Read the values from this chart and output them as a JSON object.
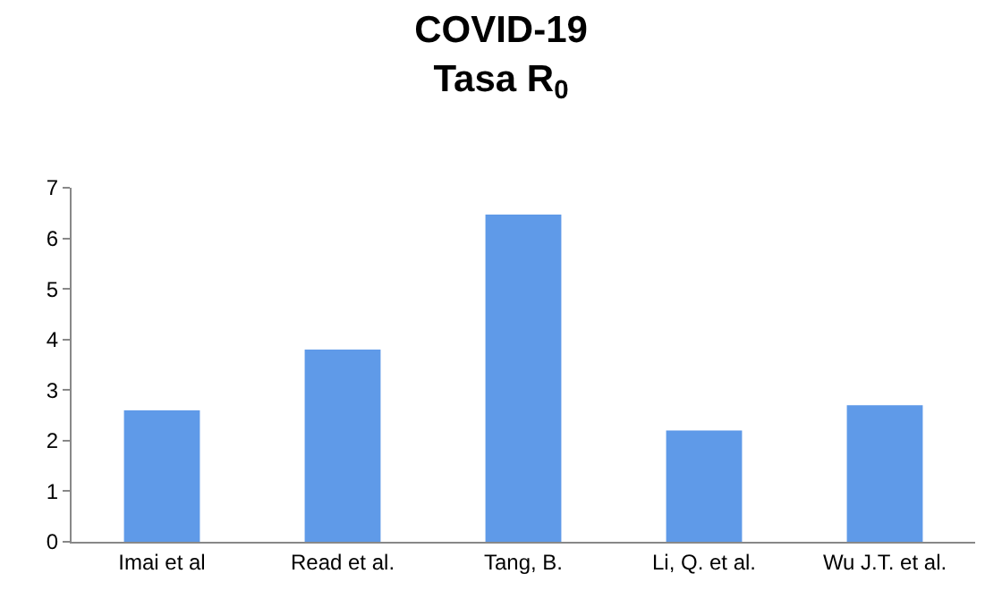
{
  "chart_data": {
    "type": "bar",
    "title": "COVID-19\nTasa R$_{0}$",
    "categories": [
      "Imai et al",
      "Read et al.",
      "Tang, B.",
      "Li, Q. et al.",
      "Wu J.T. et al."
    ],
    "values": [
      2.6,
      3.8,
      6.47,
      2.2,
      2.7
    ],
    "color": "#5f9ae8",
    "ylim": [
      0,
      7
    ],
    "yticks": [
      0,
      1,
      2,
      3,
      4,
      5,
      6,
      7
    ],
    "grid": false
  }
}
